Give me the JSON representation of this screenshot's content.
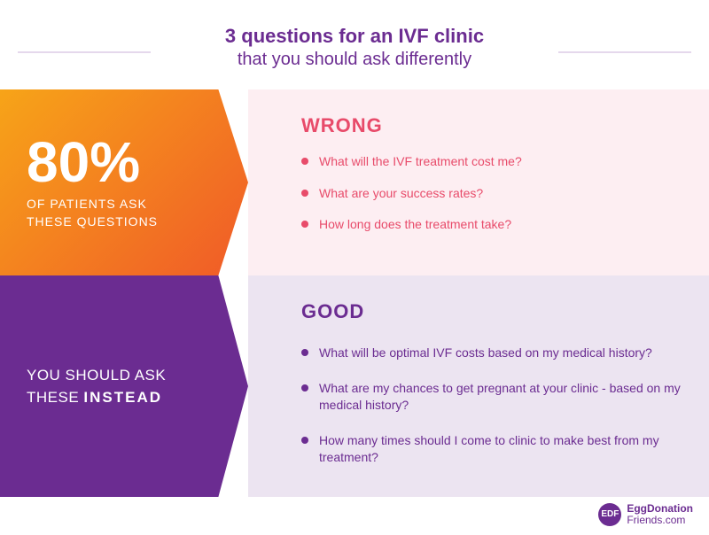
{
  "header": {
    "line1": "3 questions for an IVF clinic",
    "line2": "that you should ask differently"
  },
  "wrong": {
    "stat": "80%",
    "stat_sub1": "OF PATIENTS ASK",
    "stat_sub2": "THESE QUESTIONS",
    "label": "WRONG",
    "label_color": "#e84b6a",
    "bg_color": "#fdeef2",
    "left_gradient_from": "#f7a418",
    "left_gradient_to": "#f05a28",
    "questions": [
      "What will the IVF treatment cost me?",
      "What are your success rates?",
      "How long does the treatment take?"
    ]
  },
  "good": {
    "left_line1": "YOU SHOULD ASK",
    "left_line2_pre": "THESE ",
    "left_line2_strong": "INSTEAD",
    "label": "GOOD",
    "label_color": "#6b2c91",
    "bg_color": "#ece4f1",
    "left_bg": "#6b2c91",
    "questions": [
      "What will be optimal IVF costs based on my medical history?",
      "What are my chances to get pregnant at your clinic - based on my medical history?",
      "How many times should I come to clinic to make best from my treatment?"
    ]
  },
  "footer": {
    "badge": "EDF",
    "line1": "EggDonation",
    "line2": "Friends.com"
  },
  "colors": {
    "brand_purple": "#6b2c91",
    "divider": "#e5d8ec"
  }
}
